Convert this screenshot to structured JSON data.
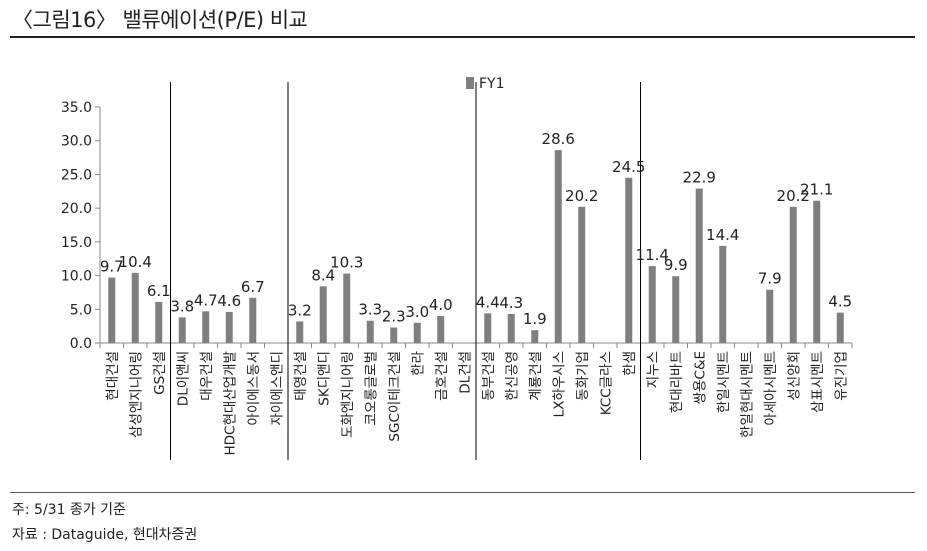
{
  "header": {
    "title": "〈그림16〉 밸류에이션(P/E) 비교"
  },
  "footer": {
    "note": "주: 5/31 종가 기준",
    "source": "자료 : Dataguide, 현대차증권"
  },
  "colors": {
    "bar": "#7f7f7f",
    "axis": "#888888",
    "divider": "#000000"
  },
  "chart_data": {
    "type": "bar",
    "legend": "FY1",
    "legend_position": "top-center",
    "ylim": [
      0,
      35
    ],
    "yticks": [
      "0.0",
      "5.0",
      "10.0",
      "15.0",
      "20.0",
      "25.0",
      "30.0",
      "35.0"
    ],
    "grid": false,
    "group_dividers_after": [
      2,
      7,
      15,
      22
    ],
    "categories": [
      "현대건설",
      "삼성엔지니어링",
      "GS건설",
      "DL이앤씨",
      "대우건설",
      "HDC현대산업개발",
      "아이에스동서",
      "자이에스앤디",
      "태영건설",
      "SK디앤디",
      "도화엔지니어링",
      "코오롱글로벌",
      "SGC이테크건설",
      "한라",
      "금호건설",
      "DL건설",
      "동부건설",
      "한신공영",
      "계룡건설",
      "LX하우시스",
      "동화기업",
      "KCC글라스",
      "한샘",
      "지누스",
      "현대리바트",
      "쌍용C&E",
      "한일시멘트",
      "한일현대시멘트",
      "아세아시멘트",
      "성신양회",
      "삼표시멘트",
      "유진기업"
    ],
    "series": [
      {
        "name": "FY1",
        "values": [
          9.7,
          10.4,
          6.1,
          3.8,
          4.7,
          4.6,
          6.7,
          null,
          3.2,
          8.4,
          10.3,
          3.3,
          2.3,
          3.0,
          4.0,
          null,
          4.4,
          4.3,
          1.9,
          28.6,
          20.2,
          null,
          24.5,
          11.4,
          9.9,
          22.9,
          14.4,
          null,
          7.9,
          20.2,
          21.1,
          4.5
        ],
        "labels": [
          "9.7",
          "10.4",
          "6.1",
          "3.8",
          "4.7",
          "4.6",
          "6.7",
          "",
          "3.2",
          "8.4",
          "10.3",
          "3.3",
          "2.3",
          "3.0",
          "4.0",
          "",
          "4.4",
          "4.3",
          "1.9",
          "28.6",
          "20.2",
          "",
          "24.5",
          "11.4",
          "9.9",
          "22.9",
          "14.4",
          "",
          "7.9",
          "20.2",
          "21.1",
          "4.5"
        ]
      }
    ]
  }
}
